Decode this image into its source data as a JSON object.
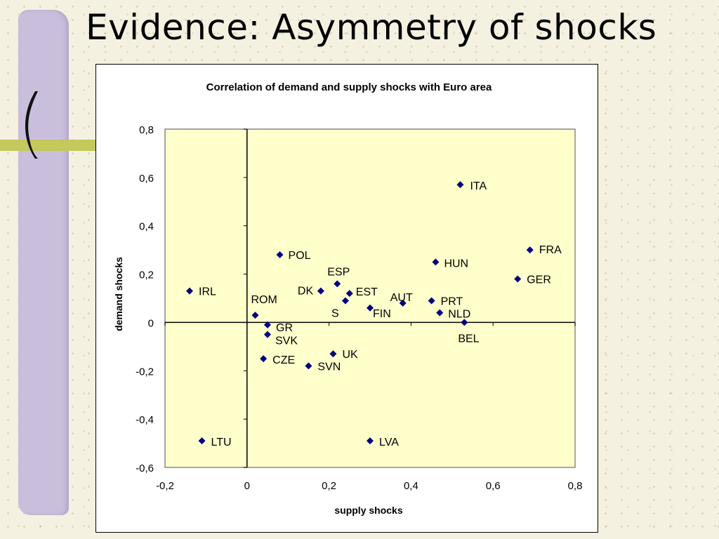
{
  "slide": {
    "title": "Evidence: Asymmetry of shocks"
  },
  "colors": {
    "plot_background": "#ffffcc",
    "marker": "#000080",
    "left_bar": "#c9bfdc",
    "band": "#c5c85a"
  },
  "chart_data": {
    "type": "scatter",
    "title": "Correlation of demand and supply shocks with Euro area",
    "xlabel": "supply shocks",
    "ylabel": "demand shocks",
    "xlim": [
      -0.2,
      0.8
    ],
    "ylim": [
      -0.6,
      0.8
    ],
    "xticks": [
      "-0,2",
      "0",
      "0,2",
      "0,4",
      "0,6",
      "0,8"
    ],
    "xtick_values": [
      -0.2,
      0,
      0.2,
      0.4,
      0.6,
      0.8
    ],
    "yticks": [
      "0,8",
      "0,6",
      "0,4",
      "0,2",
      "0",
      "-0,2",
      "-0,4",
      "-0,6"
    ],
    "ytick_values": [
      0.8,
      0.6,
      0.4,
      0.2,
      0,
      -0.2,
      -0.4,
      -0.6
    ],
    "grid": false,
    "legend": "none",
    "points": [
      {
        "label": "ITA",
        "x": 0.52,
        "y": 0.57
      },
      {
        "label": "FRA",
        "x": 0.69,
        "y": 0.3
      },
      {
        "label": "GER",
        "x": 0.66,
        "y": 0.18
      },
      {
        "label": "HUN",
        "x": 0.46,
        "y": 0.25
      },
      {
        "label": "POL",
        "x": 0.08,
        "y": 0.28
      },
      {
        "label": "ESP",
        "x": 0.22,
        "y": 0.16
      },
      {
        "label": "DK",
        "x": 0.18,
        "y": 0.13
      },
      {
        "label": "EST",
        "x": 0.25,
        "y": 0.12
      },
      {
        "label": "S",
        "x": 0.24,
        "y": 0.09
      },
      {
        "label": "FIN",
        "x": 0.3,
        "y": 0.06
      },
      {
        "label": "AUT",
        "x": 0.38,
        "y": 0.08
      },
      {
        "label": "PRT",
        "x": 0.45,
        "y": 0.09
      },
      {
        "label": "NLD",
        "x": 0.47,
        "y": 0.04
      },
      {
        "label": "BEL",
        "x": 0.53,
        "y": 0.0
      },
      {
        "label": "IRL",
        "x": -0.14,
        "y": 0.13
      },
      {
        "label": "ROM",
        "x": 0.02,
        "y": 0.03
      },
      {
        "label": "GR",
        "x": 0.05,
        "y": -0.01
      },
      {
        "label": "SVK",
        "x": 0.05,
        "y": -0.05
      },
      {
        "label": "CZE",
        "x": 0.04,
        "y": -0.15
      },
      {
        "label": "SVN",
        "x": 0.15,
        "y": -0.18
      },
      {
        "label": "UK",
        "x": 0.21,
        "y": -0.13
      },
      {
        "label": "LTU",
        "x": -0.11,
        "y": -0.49
      },
      {
        "label": "LVA",
        "x": 0.3,
        "y": -0.49
      }
    ]
  }
}
